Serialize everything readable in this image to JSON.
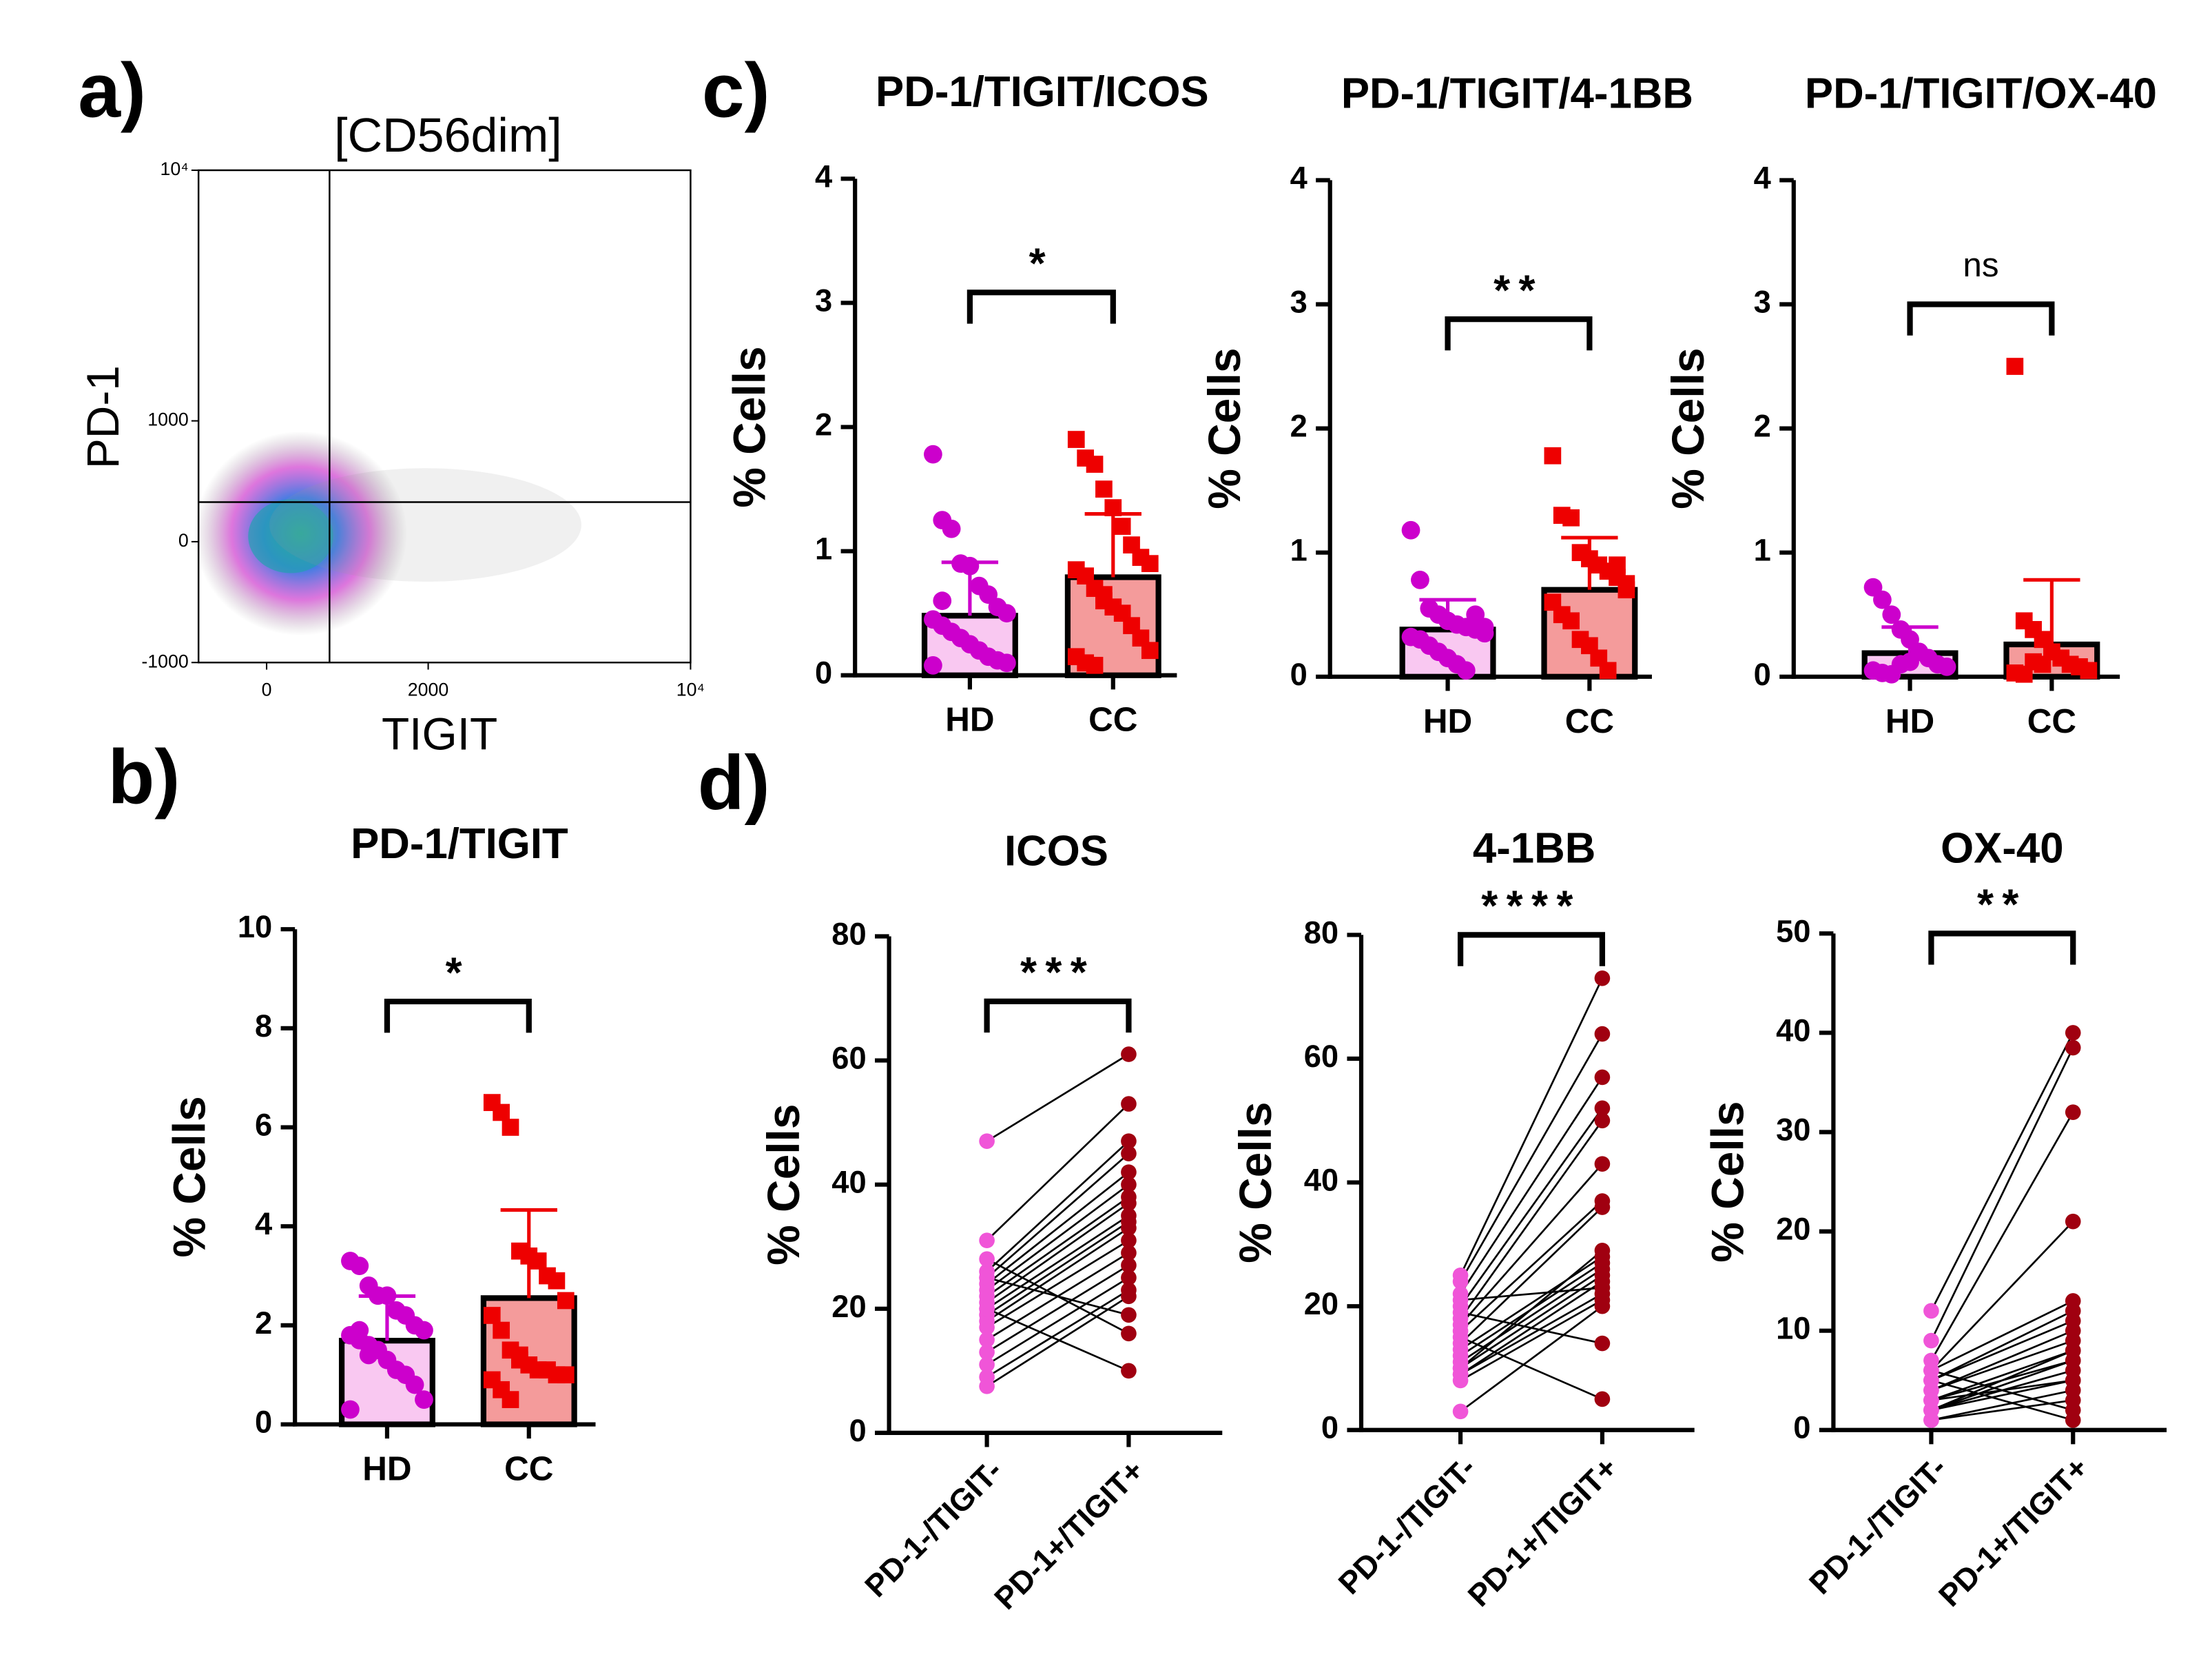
{
  "panel_labels": [
    "a)",
    "b)",
    "c)",
    "d)"
  ],
  "chart_data": [
    {
      "type": "flow",
      "title": "[CD56dim]",
      "xlabel": "TIGIT",
      "ylabel": "PD-1",
      "scale": "biexponential",
      "xlim": [
        -760,
        10000
      ],
      "xticks": [
        0,
        2000,
        {
          "value": 10000,
          "label": "10⁴"
        }
      ],
      "ylim": [
        -1000,
        10000
      ],
      "yticks": [
        -1000,
        0,
        1000,
        {
          "value": 10000,
          "label": "10⁴"
        }
      ],
      "gates": {
        "x": 700,
        "y": 280
      }
    },
    {
      "type": "bar_dots",
      "title": "PD-1/TIGIT",
      "ylabel": "% Cells",
      "categories": [
        "HD",
        "CC"
      ],
      "colors": [
        "#cc00cc",
        "#ee0000"
      ],
      "bar_colors": [
        "#f9c8f1",
        "#f49b9b"
      ],
      "markers": [
        "circle",
        "square"
      ],
      "means": [
        1.69,
        2.55
      ],
      "errors": [
        0.9,
        1.78
      ],
      "significance": "*",
      "points": [
        [
          3.3,
          3.2,
          2.8,
          2.6,
          2.6,
          2.3,
          2.2,
          2.0,
          1.9,
          1.8,
          1.7,
          1.6,
          1.5,
          1.3,
          1.1,
          1.0,
          0.8,
          0.5,
          0.3,
          1.9,
          1.4
        ],
        [
          6.5,
          6.3,
          6.0,
          3.5,
          3.4,
          3.3,
          3.0,
          2.9,
          2.5,
          2.2,
          1.9,
          1.5,
          1.4,
          1.2,
          1.1,
          1.1,
          1.0,
          1.0,
          0.9,
          0.7,
          0.5,
          1.3
        ]
      ],
      "ylim": [
        0,
        10
      ],
      "yticks": [
        0,
        2,
        4,
        6,
        8,
        10
      ]
    },
    {
      "type": "bar_dots",
      "title": "PD-1/TIGIT/ICOS",
      "ylabel": "% Cells",
      "categories": [
        "HD",
        "CC"
      ],
      "colors": [
        "#cc00cc",
        "#ee0000"
      ],
      "bar_colors": [
        "#f9c8f1",
        "#f49b9b"
      ],
      "markers": [
        "circle",
        "square"
      ],
      "means": [
        0.48,
        0.79
      ],
      "errors": [
        0.43,
        0.51
      ],
      "significance": "*",
      "points": [
        [
          1.78,
          1.25,
          1.18,
          0.9,
          0.88,
          0.72,
          0.65,
          0.55,
          0.5,
          0.45,
          0.4,
          0.35,
          0.3,
          0.25,
          0.2,
          0.15,
          0.12,
          0.1,
          0.08,
          0.6
        ],
        [
          1.9,
          1.75,
          1.7,
          1.5,
          1.35,
          1.2,
          1.05,
          0.95,
          0.9,
          0.85,
          0.8,
          0.7,
          0.65,
          0.55,
          0.5,
          0.4,
          0.3,
          0.2,
          0.15,
          0.1,
          0.08,
          0.6
        ]
      ],
      "ylim": [
        0,
        4
      ],
      "yticks": [
        0,
        1,
        2,
        3,
        4
      ]
    },
    {
      "type": "bar_dots",
      "title": "PD-1/TIGIT/4-1BB",
      "ylabel": "% Cells",
      "categories": [
        "HD",
        "CC"
      ],
      "colors": [
        "#cc00cc",
        "#ee0000"
      ],
      "bar_colors": [
        "#f9c8f1",
        "#f49b9b"
      ],
      "markers": [
        "circle",
        "square"
      ],
      "means": [
        0.38,
        0.7
      ],
      "errors": [
        0.24,
        0.42
      ],
      "significance": "**",
      "points": [
        [
          1.18,
          0.78,
          0.55,
          0.5,
          0.45,
          0.42,
          0.4,
          0.38,
          0.35,
          0.32,
          0.3,
          0.25,
          0.2,
          0.15,
          0.1,
          0.05,
          0.5,
          0.4
        ],
        [
          1.78,
          1.3,
          1.28,
          1.0,
          0.95,
          0.9,
          0.85,
          0.8,
          0.75,
          0.6,
          0.5,
          0.45,
          0.3,
          0.25,
          0.15,
          0.05,
          0.9,
          0.7
        ]
      ],
      "ylim": [
        0,
        4
      ],
      "yticks": [
        0,
        1,
        2,
        3,
        4
      ]
    },
    {
      "type": "bar_dots",
      "title": "PD-1/TIGIT/OX-40",
      "ylabel": "% Cells",
      "categories": [
        "HD",
        "CC"
      ],
      "colors": [
        "#cc00cc",
        "#ee0000"
      ],
      "bar_colors": [
        "#f9c8f1",
        "#f49b9b"
      ],
      "markers": [
        "circle",
        "square"
      ],
      "means": [
        0.19,
        0.26
      ],
      "errors": [
        0.21,
        0.52
      ],
      "significance": "ns",
      "points": [
        [
          0.72,
          0.62,
          0.5,
          0.38,
          0.3,
          0.2,
          0.15,
          0.1,
          0.08,
          0.05,
          0.03,
          0.02,
          0.1,
          0.12
        ],
        [
          2.5,
          0.45,
          0.38,
          0.3,
          0.2,
          0.15,
          0.1,
          0.08,
          0.05,
          0.03,
          0.02,
          0.12,
          0.1
        ]
      ],
      "ylim": [
        0,
        4
      ],
      "yticks": [
        0,
        1,
        2,
        3,
        4
      ]
    },
    {
      "type": "paired",
      "title": "ICOS",
      "ylabel": "% Cells",
      "categories": [
        "PD-1-/TIGIT-",
        "PD-1+/TIGIT+"
      ],
      "colors": [
        "#f055d8",
        "#a00010"
      ],
      "significance": "***",
      "values": [
        [
          47,
          31,
          26,
          25,
          24,
          23,
          22,
          21,
          20,
          19,
          18,
          17,
          15,
          13,
          11,
          9,
          7.5,
          25,
          28,
          20
        ],
        [
          61,
          53,
          47,
          45,
          42,
          40,
          38,
          37,
          35,
          34,
          33,
          31,
          29,
          27,
          25,
          23,
          22,
          19,
          16,
          10
        ]
      ],
      "ylim": [
        0,
        80
      ],
      "yticks": [
        0,
        20,
        40,
        60,
        80
      ]
    },
    {
      "type": "paired",
      "title": "4-1BB",
      "ylabel": "% Cells",
      "categories": [
        "PD-1-/TIGIT-",
        "PD-1+/TIGIT+"
      ],
      "colors": [
        "#f055d8",
        "#a00010"
      ],
      "significance": "****",
      "values": [
        [
          25,
          24,
          22,
          20,
          18,
          17,
          16,
          14,
          13,
          12,
          11,
          10,
          9,
          9,
          8,
          3,
          19,
          15,
          10,
          21
        ],
        [
          73,
          64,
          57,
          52,
          50,
          43,
          37,
          36,
          28,
          27,
          26,
          25,
          24,
          22,
          21,
          20,
          14,
          5,
          29,
          23
        ]
      ],
      "ylim": [
        0,
        80
      ],
      "yticks": [
        0,
        20,
        40,
        60,
        80
      ]
    },
    {
      "type": "paired",
      "title": "OX-40",
      "ylabel": "% Cells",
      "categories": [
        "PD-1-/TIGIT-",
        "PD-1+/TIGIT+"
      ],
      "colors": [
        "#f055d8",
        "#a00010"
      ],
      "significance": "**",
      "values": [
        [
          12,
          9,
          7,
          6,
          6,
          5,
          5,
          4,
          4,
          3,
          3,
          2,
          2,
          2,
          1,
          1,
          6,
          5,
          3,
          2
        ],
        [
          40,
          38.5,
          32,
          21,
          13,
          12,
          11,
          10,
          9,
          8,
          7,
          7,
          6,
          5,
          4,
          3,
          2,
          1,
          5,
          8
        ]
      ],
      "ylim": [
        0,
        50
      ],
      "yticks": [
        0,
        10,
        20,
        30,
        40,
        50
      ]
    }
  ]
}
